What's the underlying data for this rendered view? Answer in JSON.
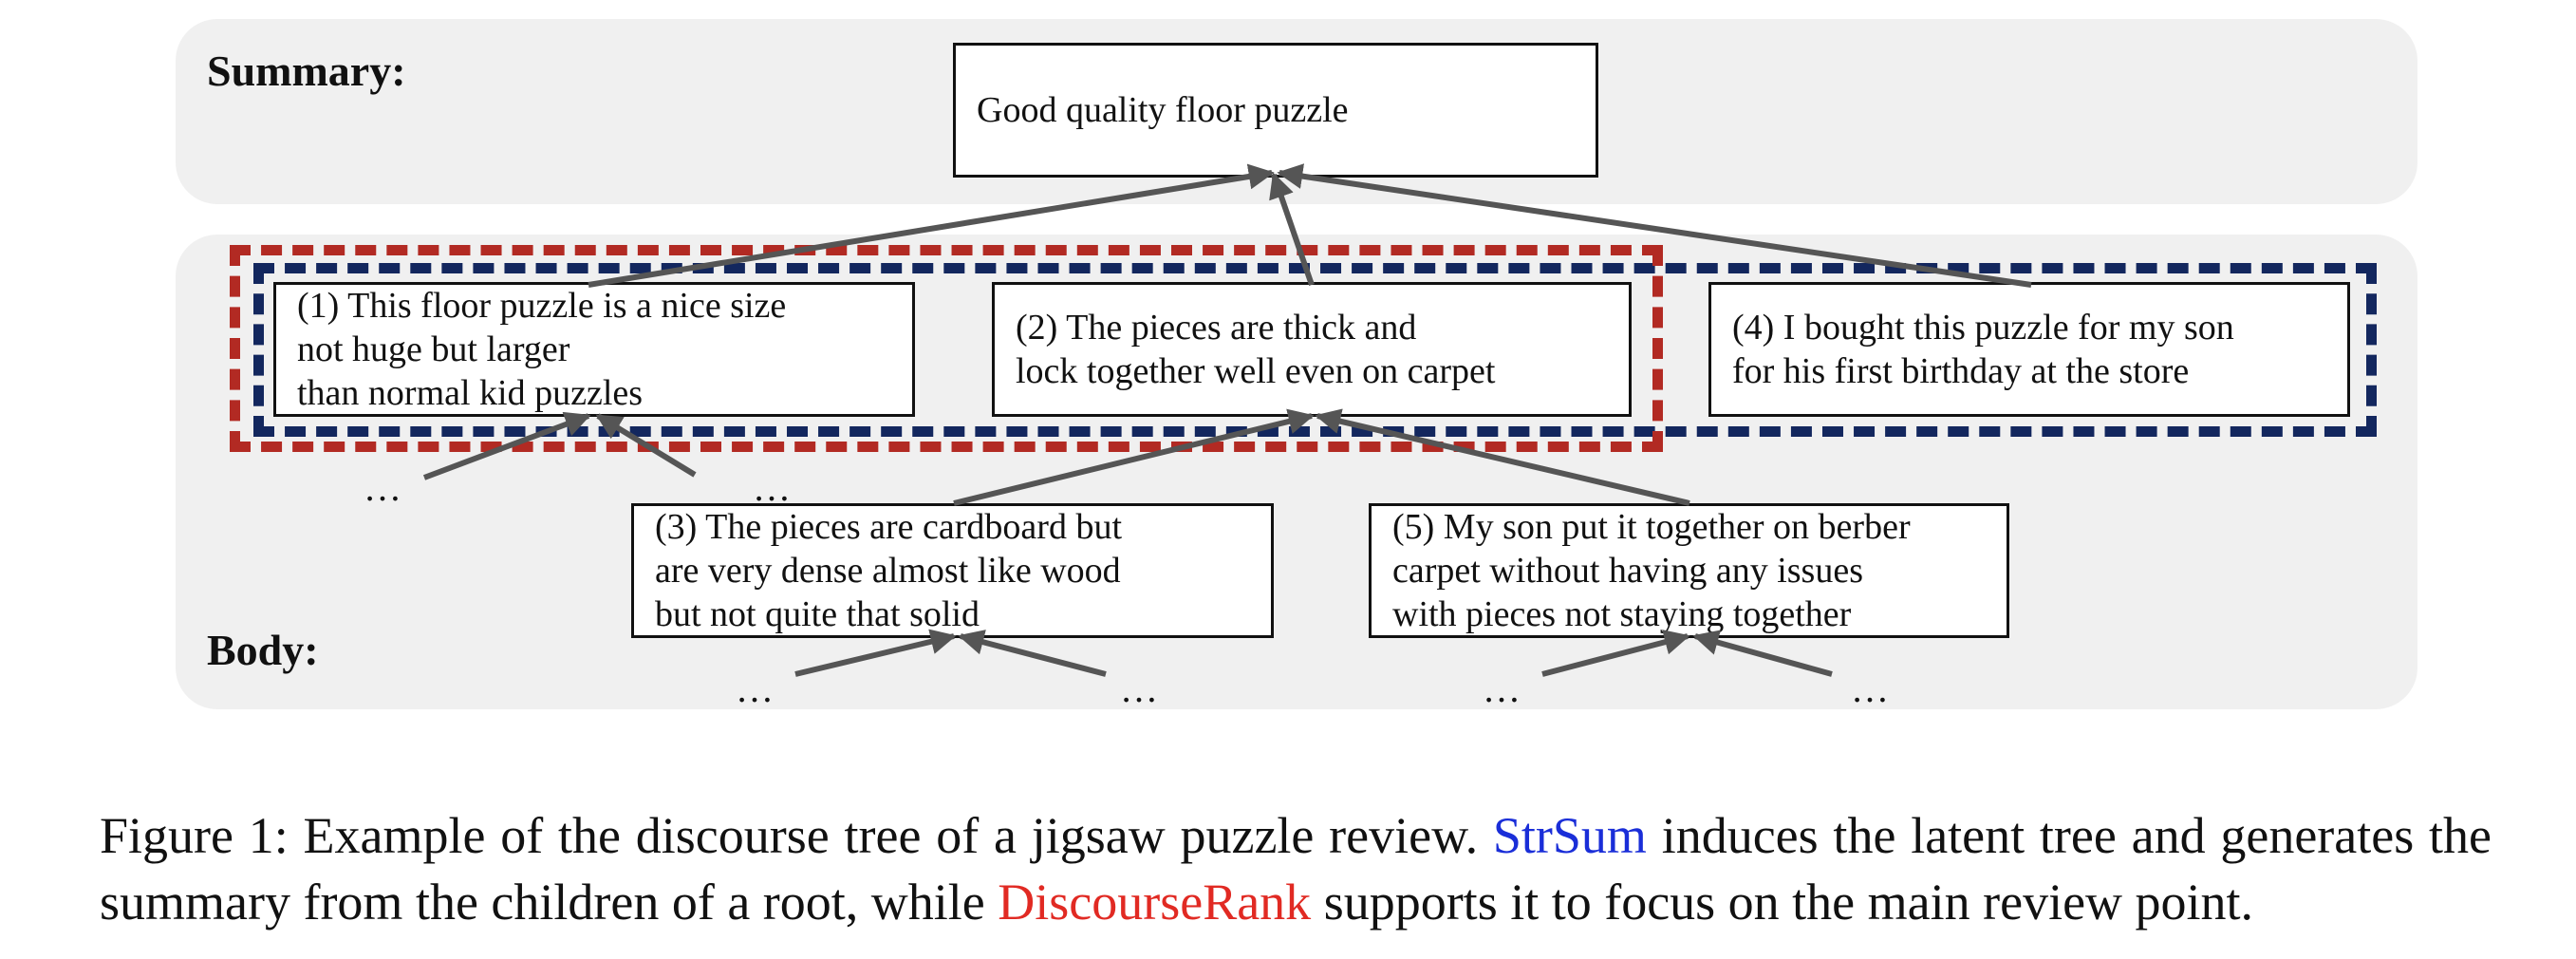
{
  "labels": {
    "summary": "Summary:",
    "body": "Body:"
  },
  "summary_box": "Good quality floor puzzle",
  "nodes": [
    {
      "id": "1",
      "lines": [
        "(1) This floor puzzle is a nice size",
        "not huge but larger",
        "than normal kid puzzles"
      ]
    },
    {
      "id": "2",
      "lines": [
        "(2) The pieces are thick and",
        "lock together well even on carpet"
      ]
    },
    {
      "id": "3",
      "lines": [
        "(3) The pieces are cardboard but",
        "are very dense almost like wood",
        "but not quite that solid"
      ]
    },
    {
      "id": "4",
      "lines": [
        "(4) I bought this puzzle for my son",
        "for his first birthday at the store"
      ]
    },
    {
      "id": "5",
      "lines": [
        "(5) My son put it together on berber",
        "carpet without having any issues",
        "with pieces not staying together"
      ]
    }
  ],
  "ellipsis": "…",
  "caption": {
    "prefix": "Figure 1: Example of the discourse tree of a jigsaw puzzle review.",
    "strsum": "StrSum",
    "middle": "induces the latent tree and generates the summary from the children of a root, while",
    "discourserank": "DiscourseRank",
    "suffix": "supports it to focus on the main review point."
  },
  "colors": {
    "red_dash": "#b22a23",
    "blue_dash": "#13275e",
    "strsum": "#1a2ed8",
    "discourserank": "#e12a23",
    "arrow": "#555555"
  }
}
